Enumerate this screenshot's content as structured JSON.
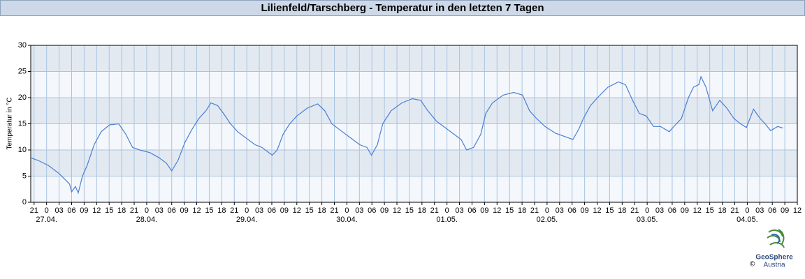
{
  "chart_data": {
    "type": "line",
    "title": "Lilienfeld/Tarschberg - Temperatur in den letzten 7 Tagen",
    "y_label": "Temperatur in °C",
    "x": [
      -3.8,
      -2,
      0.5,
      3,
      5.5,
      6,
      6.9,
      7.6,
      8.6,
      9.7,
      11.4,
      13.1,
      15.1,
      17.3,
      19,
      20.6,
      22.3,
      24.8,
      27,
      28.7,
      30,
      31.5,
      33.2,
      34.9,
      36.5,
      38.2,
      39.4,
      41,
      42.4,
      44.1,
      45.8,
      47.8,
      50,
      51.6,
      54.1,
      55.3,
      56.7,
      58.3,
      60,
      62.5,
      65,
      66.7,
      68.4,
      70.9,
      73.4,
      75.1,
      76.8,
      77.9,
      79.3,
      80.6,
      82.6,
      85.2,
      87.7,
      89.7,
      91.4,
      93.5,
      96,
      97.7,
      99.4,
      100.7,
      102.4,
      104.1,
      105.3,
      106.9,
      109.5,
      112,
      114.1,
      115.8,
      117.5,
      119.5,
      122,
      124.5,
      126.2,
      127.6,
      128.7,
      130.4,
      132.1,
      134.6,
      137.1,
      138.8,
      140.5,
      142.1,
      143.8,
      145.5,
      147.2,
      149.3,
      151,
      152.2,
      153.9,
      155.1,
      156.4,
      156.9,
      158.1,
      159.7,
      161.4,
      163.1,
      164.8,
      166.4,
      167.8,
      169.5,
      171.1,
      172.3,
      173.6,
      175.3,
      176.5
    ],
    "series": [
      {
        "name": "Temperatur",
        "color": "#4a7fd4",
        "values": [
          8.5,
          8,
          7,
          5.5,
          3.5,
          2,
          3,
          1.8,
          5,
          7,
          11,
          13.5,
          14.8,
          15,
          13,
          10.5,
          10,
          9.5,
          8.5,
          7.5,
          6,
          8,
          11.5,
          14,
          16,
          17.5,
          19,
          18.5,
          17,
          15,
          13.5,
          12.3,
          11,
          10.5,
          9,
          10,
          13,
          15,
          16.5,
          18,
          18.8,
          17.5,
          15,
          13.5,
          12,
          11,
          10.5,
          9,
          11,
          15,
          17.5,
          19,
          19.8,
          19.5,
          17.5,
          15.5,
          14,
          13,
          12,
          10,
          10.5,
          13,
          17,
          19,
          20.5,
          21,
          20.5,
          17.5,
          16,
          14.5,
          13.2,
          12.5,
          12,
          14,
          16,
          18.5,
          20,
          22,
          23,
          22.5,
          19.5,
          17,
          16.5,
          14.5,
          14.5,
          13.5,
          15,
          16,
          20,
          22,
          22.5,
          24,
          22,
          17.5,
          19.5,
          18,
          16,
          15,
          14.3,
          17.8,
          16,
          15,
          13.7,
          14.5,
          14.2
        ]
      }
    ],
    "xlim": [
      -3.8,
      180
    ],
    "ylim": [
      0,
      30
    ],
    "yticks": [
      0,
      5,
      10,
      15,
      20,
      25,
      30
    ],
    "xticks": [
      {
        "value": -3,
        "label": "21"
      },
      0,
      {
        "value": 3,
        "label": "03"
      },
      {
        "value": 6,
        "label": "06"
      },
      {
        "value": 9,
        "label": "09"
      },
      12,
      15,
      18,
      21,
      {
        "value": 24,
        "label": "0"
      },
      {
        "value": 27,
        "label": "03"
      },
      {
        "value": 30,
        "label": "06"
      },
      {
        "value": 33,
        "label": "09"
      },
      {
        "value": 36,
        "label": "12"
      },
      {
        "value": 39,
        "label": "15"
      },
      {
        "value": 42,
        "label": "18"
      },
      {
        "value": 45,
        "label": "21"
      },
      {
        "value": 48,
        "label": "0"
      },
      {
        "value": 51,
        "label": "03"
      },
      {
        "value": 54,
        "label": "06"
      },
      {
        "value": 57,
        "label": "09"
      },
      {
        "value": 60,
        "label": "12"
      },
      {
        "value": 63,
        "label": "15"
      },
      {
        "value": 66,
        "label": "18"
      },
      {
        "value": 69,
        "label": "21"
      },
      {
        "value": 72,
        "label": "0"
      },
      {
        "value": 75,
        "label": "03"
      },
      {
        "value": 78,
        "label": "06"
      },
      {
        "value": 81,
        "label": "09"
      },
      {
        "value": 84,
        "label": "12"
      },
      {
        "value": 87,
        "label": "15"
      },
      {
        "value": 90,
        "label": "18"
      },
      {
        "value": 93,
        "label": "21"
      },
      {
        "value": 96,
        "label": "0"
      },
      {
        "value": 99,
        "label": "03"
      },
      {
        "value": 102,
        "label": "06"
      },
      {
        "value": 105,
        "label": "09"
      },
      {
        "value": 108,
        "label": "12"
      },
      {
        "value": 111,
        "label": "15"
      },
      {
        "value": 114,
        "label": "18"
      },
      {
        "value": 117,
        "label": "21"
      },
      {
        "value": 120,
        "label": "0"
      },
      {
        "value": 123,
        "label": "03"
      },
      {
        "value": 126,
        "label": "06"
      },
      {
        "value": 129,
        "label": "09"
      },
      {
        "value": 132,
        "label": "12"
      },
      {
        "value": 135,
        "label": "15"
      },
      {
        "value": 138,
        "label": "18"
      },
      {
        "value": 141,
        "label": "21"
      },
      {
        "value": 144,
        "label": "0"
      },
      {
        "value": 147,
        "label": "03"
      },
      {
        "value": 150,
        "label": "06"
      },
      {
        "value": 153,
        "label": "09"
      },
      {
        "value": 156,
        "label": "12"
      },
      {
        "value": 159,
        "label": "15"
      },
      {
        "value": 162,
        "label": "18"
      },
      {
        "value": 165,
        "label": "21"
      },
      {
        "value": 168,
        "label": "0"
      },
      {
        "value": 171,
        "label": "03"
      },
      {
        "value": 174,
        "label": "06"
      },
      {
        "value": 177,
        "label": "09"
      },
      {
        "value": 180,
        "label": "12"
      }
    ],
    "date_labels": [
      {
        "value": 0,
        "label": "27.04."
      },
      {
        "value": 24,
        "label": "28.04."
      },
      {
        "value": 48,
        "label": "29.04."
      },
      {
        "value": 72,
        "label": "30.04."
      },
      {
        "value": 96,
        "label": "01.05."
      },
      {
        "value": 120,
        "label": "02.05."
      },
      {
        "value": 144,
        "label": "03.05."
      },
      {
        "value": 168,
        "label": "04.05."
      }
    ],
    "grid": true,
    "band_colors": [
      "#f4f7fb",
      "#e3e9f1"
    ]
  },
  "footer": {
    "brand": "GeoSphere",
    "country": "Austria",
    "copyright": "©"
  }
}
